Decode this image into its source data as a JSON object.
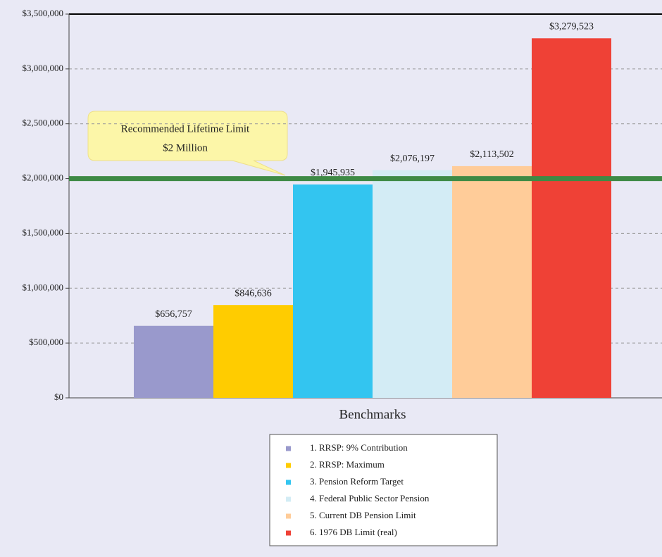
{
  "chart_data": {
    "type": "bar",
    "categories": [
      "Benchmarks"
    ],
    "series": [
      {
        "name": "1. RRSP: 9% Contribution",
        "color": "#9999cc",
        "values": [
          656757
        ],
        "value_labels": [
          "$656,757"
        ]
      },
      {
        "name": "2. RRSP: Maximum",
        "color": "#ffcc00",
        "values": [
          846636
        ],
        "value_labels": [
          "$846,636"
        ]
      },
      {
        "name": "3. Pension Reform Target",
        "color": "#33c5f0",
        "values": [
          1945935
        ],
        "value_labels": [
          "$1,945,935"
        ]
      },
      {
        "name": "4. Federal Public Sector Pension",
        "color": "#d3ecf5",
        "values": [
          2076197
        ],
        "value_labels": [
          "$2,076,197"
        ]
      },
      {
        "name": "5. Current  DB Pension Limit",
        "color": "#ffcc99",
        "values": [
          2113502
        ],
        "value_labels": [
          "$2,113,502"
        ]
      },
      {
        "name": "6. 1976  DB Limit (real)",
        "color": "#ef4136",
        "values": [
          3279523
        ],
        "value_labels": [
          "$3,279,523"
        ]
      }
    ],
    "ylim": [
      0,
      3500000
    ],
    "yticks": [
      {
        "value": 0,
        "label": "$0"
      },
      {
        "value": 500000,
        "label": "$500,000"
      },
      {
        "value": 1000000,
        "label": "$1,000,000"
      },
      {
        "value": 1500000,
        "label": "$1,500,000"
      },
      {
        "value": 2000000,
        "label": "$2,000,000"
      },
      {
        "value": 2500000,
        "label": "$2,500,000"
      },
      {
        "value": 3000000,
        "label": "$3,000,000"
      },
      {
        "value": 3500000,
        "label": "$3,500,000"
      }
    ],
    "grid": true,
    "reference_line": {
      "value": 2000000,
      "color": "#3e8a45"
    },
    "annotation": [
      "Recommended Lifetime Limit",
      "$2 Million"
    ],
    "legend": "bottom"
  }
}
